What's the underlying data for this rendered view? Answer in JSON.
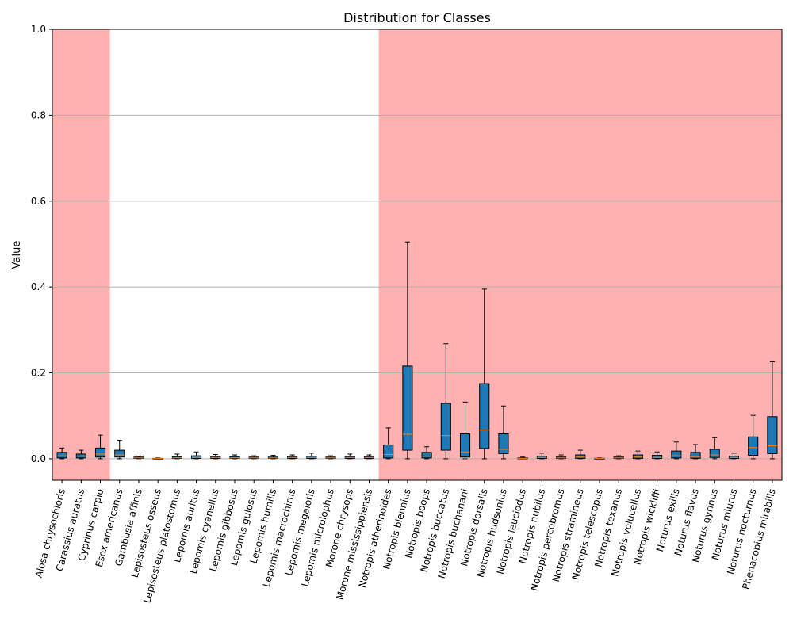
{
  "chart_data": {
    "type": "box",
    "title": "Distribution for Classes",
    "xlabel": "",
    "ylabel": "Value",
    "ylim": [
      -0.05,
      1.0
    ],
    "yticks": [
      "0.0",
      "0.2",
      "0.4",
      "0.6",
      "0.8",
      "1.0"
    ],
    "grid": "horizontal",
    "colors": {
      "box_fill": "#1f77b4",
      "median": "#ff7f0e",
      "highlight": "#ffb0b0",
      "grid": "#b0b0b0"
    },
    "highlight_ranges": [
      [
        0,
        2
      ],
      [
        17,
        37
      ]
    ],
    "categories": [
      "Alosa chrysochloris",
      "Carassius auratus",
      "Cyprinus carpio",
      "Esox americanus",
      "Gambusia affinis",
      "Lepisosteus osseus",
      "Lepisosteus platostomus",
      "Lepomis auritus",
      "Lepomis cyanellus",
      "Lepomis gibbosus",
      "Lepomis gulosus",
      "Lepomis humilis",
      "Lepomis macrochirus",
      "Lepomis megalotis",
      "Lepomis microlophus",
      "Morone chrysops",
      "Morone mississippiensis",
      "Notropis atherinoides",
      "Notropis blennius",
      "Notropis boops",
      "Notropis buccatus",
      "Notropis buchanani",
      "Notropis dorsalis",
      "Notropis hudsonius",
      "Notropis leuciodus",
      "Notropis nubilus",
      "Notropis percobromus",
      "Notropis stramineus",
      "Notropis telescopus",
      "Notropis texanus",
      "Notropis volucellus",
      "Notropis wickliffi",
      "Noturus exilis",
      "Noturus flavus",
      "Noturus gyrinus",
      "Noturus miurus",
      "Noturus nocturnus",
      "Phenacobius mirabilis"
    ],
    "boxes": [
      {
        "whislo": 0.0,
        "q1": 0.002,
        "med": 0.007,
        "q3": 0.015,
        "whishi": 0.025
      },
      {
        "whislo": 0.0,
        "q1": 0.002,
        "med": 0.006,
        "q3": 0.011,
        "whishi": 0.02
      },
      {
        "whislo": 0.0,
        "q1": 0.004,
        "med": 0.011,
        "q3": 0.025,
        "whishi": 0.055
      },
      {
        "whislo": 0.0,
        "q1": 0.004,
        "med": 0.009,
        "q3": 0.02,
        "whishi": 0.043
      },
      {
        "whislo": 0.0,
        "q1": 0.001,
        "med": 0.002,
        "q3": 0.004,
        "whishi": 0.006
      },
      {
        "whislo": 0.0,
        "q1": 0.0,
        "med": 0.001,
        "q3": 0.001,
        "whishi": 0.002
      },
      {
        "whislo": 0.0,
        "q1": 0.001,
        "med": 0.002,
        "q3": 0.005,
        "whishi": 0.011
      },
      {
        "whislo": 0.0,
        "q1": 0.001,
        "med": 0.003,
        "q3": 0.007,
        "whishi": 0.016
      },
      {
        "whislo": 0.0,
        "q1": 0.001,
        "med": 0.003,
        "q3": 0.005,
        "whishi": 0.01
      },
      {
        "whislo": 0.0,
        "q1": 0.001,
        "med": 0.002,
        "q3": 0.005,
        "whishi": 0.009
      },
      {
        "whislo": 0.0,
        "q1": 0.001,
        "med": 0.002,
        "q3": 0.004,
        "whishi": 0.007
      },
      {
        "whislo": 0.0,
        "q1": 0.001,
        "med": 0.002,
        "q3": 0.004,
        "whishi": 0.008
      },
      {
        "whislo": 0.0,
        "q1": 0.001,
        "med": 0.003,
        "q3": 0.005,
        "whishi": 0.009
      },
      {
        "whislo": 0.0,
        "q1": 0.001,
        "med": 0.003,
        "q3": 0.006,
        "whishi": 0.013
      },
      {
        "whislo": 0.0,
        "q1": 0.001,
        "med": 0.002,
        "q3": 0.004,
        "whishi": 0.007
      },
      {
        "whislo": 0.0,
        "q1": 0.001,
        "med": 0.003,
        "q3": 0.005,
        "whishi": 0.011
      },
      {
        "whislo": 0.0,
        "q1": 0.001,
        "med": 0.003,
        "q3": 0.005,
        "whishi": 0.009
      },
      {
        "whislo": 0.0,
        "q1": 0.002,
        "med": 0.01,
        "q3": 0.032,
        "whishi": 0.072
      },
      {
        "whislo": 0.0,
        "q1": 0.02,
        "med": 0.057,
        "q3": 0.216,
        "whishi": 0.505
      },
      {
        "whislo": 0.0,
        "q1": 0.002,
        "med": 0.006,
        "q3": 0.015,
        "whishi": 0.028
      },
      {
        "whislo": 0.0,
        "q1": 0.02,
        "med": 0.054,
        "q3": 0.129,
        "whishi": 0.268
      },
      {
        "whislo": 0.0,
        "q1": 0.004,
        "med": 0.016,
        "q3": 0.058,
        "whishi": 0.132
      },
      {
        "whislo": 0.0,
        "q1": 0.024,
        "med": 0.067,
        "q3": 0.175,
        "whishi": 0.395
      },
      {
        "whislo": 0.0,
        "q1": 0.012,
        "med": 0.022,
        "q3": 0.058,
        "whishi": 0.123
      },
      {
        "whislo": 0.0,
        "q1": 0.0,
        "med": 0.001,
        "q3": 0.002,
        "whishi": 0.004
      },
      {
        "whislo": 0.0,
        "q1": 0.001,
        "med": 0.003,
        "q3": 0.006,
        "whishi": 0.013
      },
      {
        "whislo": 0.0,
        "q1": 0.001,
        "med": 0.002,
        "q3": 0.004,
        "whishi": 0.009
      },
      {
        "whislo": 0.0,
        "q1": 0.001,
        "med": 0.004,
        "q3": 0.009,
        "whishi": 0.02
      },
      {
        "whislo": 0.0,
        "q1": 0.0,
        "med": 0.001,
        "q3": 0.001,
        "whishi": 0.002
      },
      {
        "whislo": 0.0,
        "q1": 0.001,
        "med": 0.002,
        "q3": 0.004,
        "whishi": 0.007
      },
      {
        "whislo": 0.0,
        "q1": 0.001,
        "med": 0.004,
        "q3": 0.009,
        "whishi": 0.018
      },
      {
        "whislo": 0.0,
        "q1": 0.001,
        "med": 0.003,
        "q3": 0.008,
        "whishi": 0.016
      },
      {
        "whislo": 0.0,
        "q1": 0.002,
        "med": 0.007,
        "q3": 0.018,
        "whishi": 0.039
      },
      {
        "whislo": 0.0,
        "q1": 0.001,
        "med": 0.005,
        "q3": 0.015,
        "whishi": 0.033
      },
      {
        "whislo": 0.0,
        "q1": 0.003,
        "med": 0.009,
        "q3": 0.022,
        "whishi": 0.049
      },
      {
        "whislo": 0.0,
        "q1": 0.001,
        "med": 0.003,
        "q3": 0.006,
        "whishi": 0.013
      },
      {
        "whislo": 0.0,
        "q1": 0.008,
        "med": 0.026,
        "q3": 0.051,
        "whishi": 0.101
      },
      {
        "whislo": 0.0,
        "q1": 0.012,
        "med": 0.03,
        "q3": 0.098,
        "whishi": 0.226
      }
    ]
  }
}
